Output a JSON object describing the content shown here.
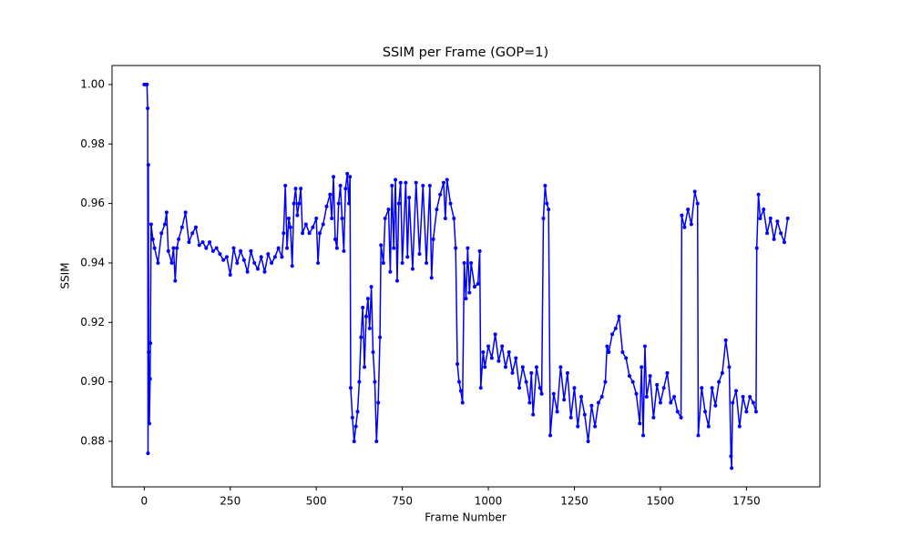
{
  "chart_data": {
    "type": "line",
    "title": "SSIM per Frame (GOP=1)",
    "x_label": "Frame Number",
    "y_label": "SSIM",
    "color": "#0000ff",
    "xlim": [
      -93.5,
      1963.5
    ],
    "xticks": [
      0,
      250,
      500,
      750,
      1000,
      1250,
      1500,
      1750
    ],
    "ylim": [
      0.8647,
      1.0064
    ],
    "yticks": [
      {
        "value": 0.88,
        "label": "0.88"
      },
      {
        "value": 0.9,
        "label": "0.90"
      },
      {
        "value": 0.92,
        "label": "0.92"
      },
      {
        "value": 0.94,
        "label": "0.94"
      },
      {
        "value": 0.96,
        "label": "0.96"
      },
      {
        "value": 0.98,
        "label": "0.98"
      },
      {
        "value": 1.0,
        "label": "1.00"
      }
    ],
    "x": [
      0,
      4,
      8,
      10,
      11,
      12,
      13,
      15,
      17,
      18,
      20,
      25,
      30,
      40,
      50,
      60,
      65,
      70,
      80,
      85,
      90,
      95,
      100,
      110,
      120,
      130,
      140,
      150,
      160,
      170,
      180,
      190,
      200,
      210,
      220,
      230,
      240,
      250,
      260,
      270,
      280,
      290,
      300,
      310,
      320,
      330,
      340,
      350,
      360,
      370,
      380,
      390,
      400,
      405,
      410,
      415,
      420,
      425,
      430,
      435,
      440,
      445,
      450,
      455,
      460,
      470,
      480,
      490,
      500,
      505,
      510,
      520,
      530,
      540,
      545,
      550,
      555,
      560,
      565,
      570,
      575,
      580,
      585,
      590,
      595,
      598,
      600,
      605,
      610,
      615,
      620,
      625,
      630,
      635,
      640,
      645,
      650,
      655,
      660,
      665,
      670,
      675,
      680,
      685,
      688,
      695,
      700,
      710,
      715,
      720,
      725,
      730,
      735,
      740,
      745,
      750,
      760,
      765,
      770,
      780,
      790,
      800,
      810,
      820,
      830,
      835,
      840,
      850,
      860,
      870,
      875,
      880,
      890,
      900,
      905,
      910,
      915,
      920,
      925,
      930,
      935,
      940,
      945,
      950,
      960,
      970,
      975,
      978,
      985,
      990,
      1000,
      1010,
      1020,
      1030,
      1040,
      1050,
      1060,
      1070,
      1080,
      1090,
      1100,
      1110,
      1120,
      1125,
      1130,
      1140,
      1150,
      1155,
      1160,
      1165,
      1170,
      1175,
      1180,
      1190,
      1200,
      1210,
      1220,
      1230,
      1240,
      1250,
      1260,
      1270,
      1280,
      1290,
      1300,
      1310,
      1320,
      1330,
      1340,
      1345,
      1350,
      1360,
      1370,
      1380,
      1390,
      1400,
      1410,
      1420,
      1430,
      1440,
      1445,
      1450,
      1455,
      1460,
      1470,
      1480,
      1490,
      1500,
      1510,
      1520,
      1530,
      1540,
      1550,
      1560,
      1562,
      1570,
      1580,
      1590,
      1600,
      1608,
      1610,
      1620,
      1630,
      1640,
      1650,
      1660,
      1670,
      1680,
      1690,
      1700,
      1705,
      1707,
      1710,
      1720,
      1730,
      1740,
      1750,
      1760,
      1770,
      1778,
      1780,
      1785,
      1790,
      1800,
      1810,
      1820,
      1830,
      1840,
      1850,
      1860,
      1870
    ],
    "values": [
      1.0,
      1.0,
      1.0,
      0.992,
      0.876,
      0.973,
      0.91,
      0.886,
      0.901,
      0.913,
      0.953,
      0.948,
      0.945,
      0.94,
      0.95,
      0.953,
      0.957,
      0.944,
      0.94,
      0.945,
      0.934,
      0.945,
      0.948,
      0.952,
      0.957,
      0.947,
      0.95,
      0.952,
      0.946,
      0.947,
      0.945,
      0.947,
      0.944,
      0.945,
      0.943,
      0.941,
      0.942,
      0.936,
      0.945,
      0.94,
      0.944,
      0.941,
      0.937,
      0.944,
      0.94,
      0.938,
      0.942,
      0.937,
      0.943,
      0.94,
      0.942,
      0.945,
      0.942,
      0.95,
      0.966,
      0.945,
      0.955,
      0.952,
      0.939,
      0.96,
      0.965,
      0.956,
      0.96,
      0.965,
      0.95,
      0.953,
      0.95,
      0.952,
      0.955,
      0.94,
      0.95,
      0.953,
      0.959,
      0.963,
      0.955,
      0.969,
      0.948,
      0.945,
      0.96,
      0.966,
      0.955,
      0.944,
      0.965,
      0.97,
      0.96,
      0.969,
      0.898,
      0.888,
      0.88,
      0.885,
      0.89,
      0.9,
      0.915,
      0.925,
      0.905,
      0.922,
      0.928,
      0.918,
      0.932,
      0.91,
      0.9,
      0.88,
      0.893,
      0.915,
      0.946,
      0.94,
      0.955,
      0.958,
      0.937,
      0.966,
      0.945,
      0.968,
      0.934,
      0.96,
      0.967,
      0.94,
      0.967,
      0.942,
      0.962,
      0.938,
      0.967,
      0.943,
      0.966,
      0.94,
      0.966,
      0.935,
      0.948,
      0.958,
      0.963,
      0.967,
      0.955,
      0.968,
      0.96,
      0.955,
      0.945,
      0.906,
      0.9,
      0.897,
      0.893,
      0.94,
      0.928,
      0.945,
      0.93,
      0.94,
      0.932,
      0.933,
      0.944,
      0.898,
      0.91,
      0.905,
      0.912,
      0.908,
      0.916,
      0.907,
      0.912,
      0.905,
      0.91,
      0.903,
      0.908,
      0.898,
      0.905,
      0.9,
      0.893,
      0.903,
      0.889,
      0.905,
      0.898,
      0.896,
      0.955,
      0.966,
      0.96,
      0.958,
      0.882,
      0.896,
      0.89,
      0.905,
      0.894,
      0.903,
      0.888,
      0.898,
      0.885,
      0.895,
      0.889,
      0.88,
      0.892,
      0.885,
      0.893,
      0.895,
      0.9,
      0.912,
      0.91,
      0.916,
      0.918,
      0.922,
      0.91,
      0.908,
      0.902,
      0.9,
      0.896,
      0.886,
      0.905,
      0.882,
      0.912,
      0.895,
      0.902,
      0.888,
      0.899,
      0.893,
      0.898,
      0.903,
      0.893,
      0.895,
      0.89,
      0.888,
      0.956,
      0.952,
      0.958,
      0.953,
      0.964,
      0.96,
      0.882,
      0.898,
      0.89,
      0.885,
      0.898,
      0.892,
      0.9,
      0.903,
      0.914,
      0.905,
      0.875,
      0.871,
      0.893,
      0.897,
      0.885,
      0.895,
      0.89,
      0.895,
      0.893,
      0.89,
      0.945,
      0.963,
      0.955,
      0.958,
      0.95,
      0.955,
      0.948,
      0.954,
      0.95,
      0.947,
      0.955
    ]
  }
}
